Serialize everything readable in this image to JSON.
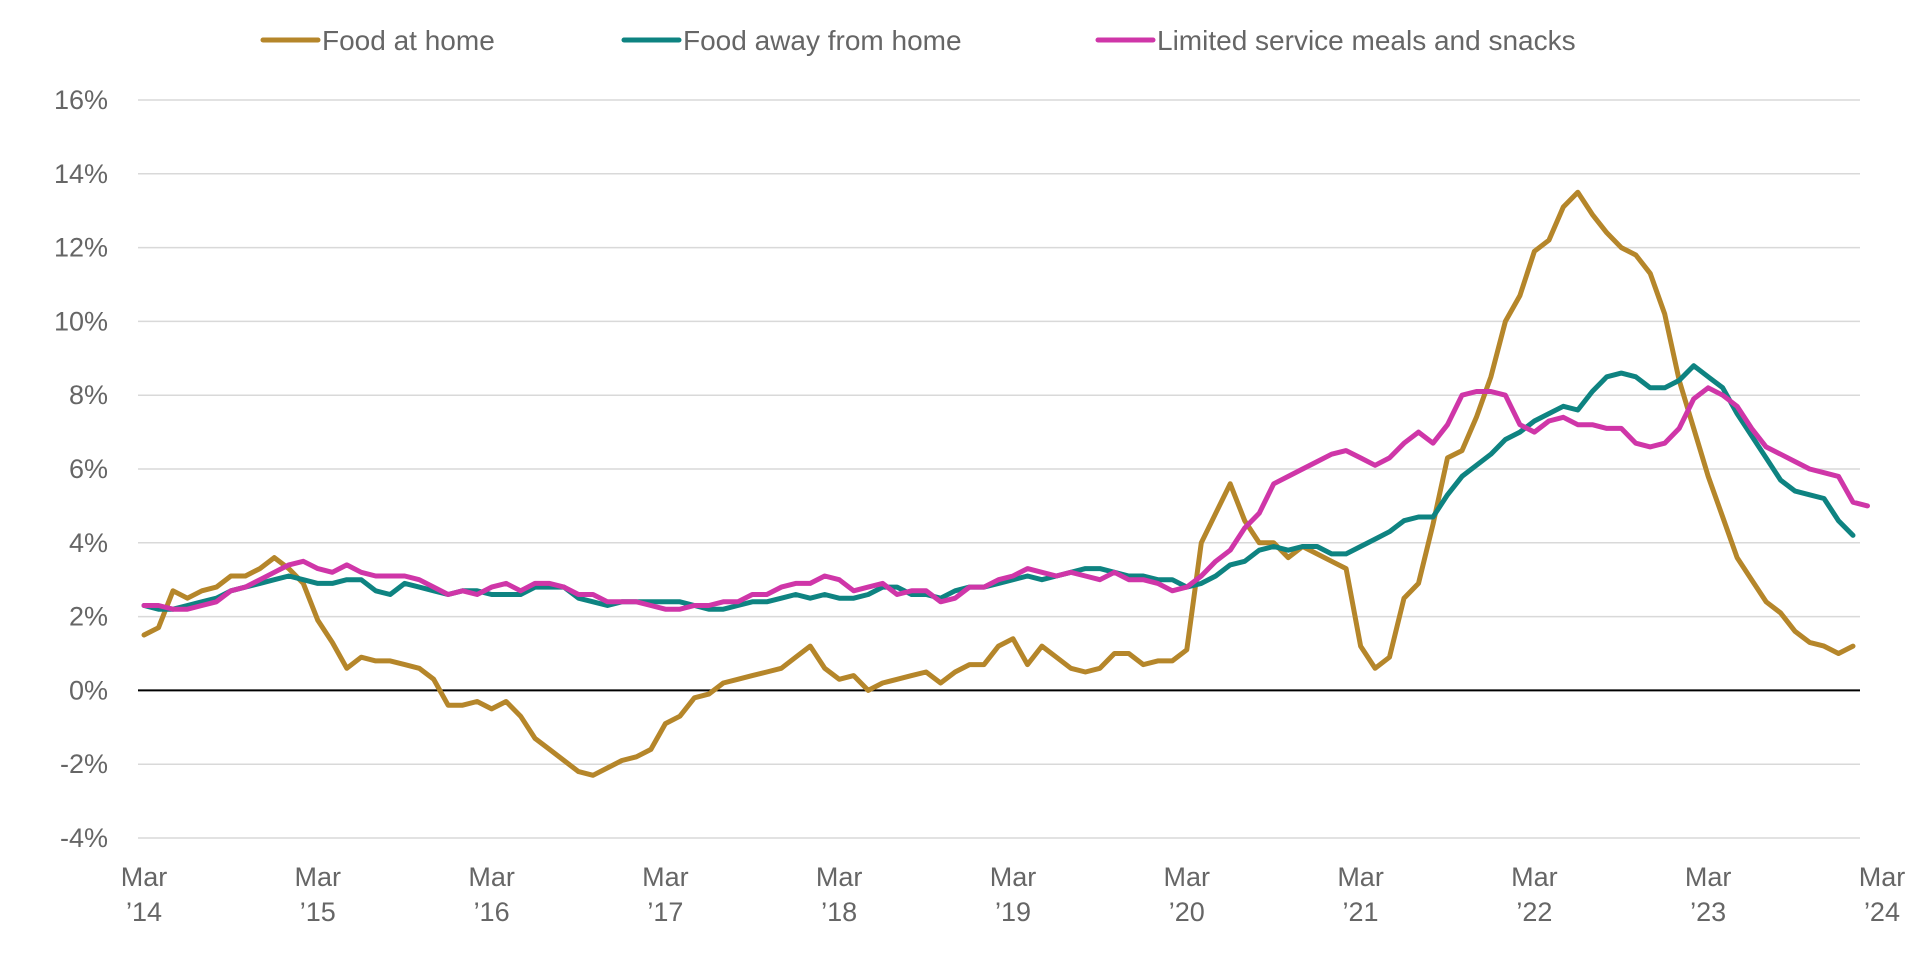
{
  "chart_data": {
    "type": "line",
    "title": "",
    "xlabel": "",
    "ylabel": "",
    "ylim": [
      -4,
      16
    ],
    "yticks": [
      16,
      14,
      12,
      10,
      8,
      6,
      4,
      2,
      0,
      -2,
      -4
    ],
    "ytick_labels": [
      "16%",
      "14%",
      "12%",
      "10%",
      "8%",
      "6%",
      "4%",
      "2%",
      "0%",
      "-2%",
      "-4%"
    ],
    "x_start": "2014-03",
    "x_end": "2024-03",
    "xtick_labels": [
      {
        "month": "Mar",
        "year": "’14"
      },
      {
        "month": "Mar",
        "year": "’15"
      },
      {
        "month": "Mar",
        "year": "’16"
      },
      {
        "month": "Mar",
        "year": "’17"
      },
      {
        "month": "Mar",
        "year": "’18"
      },
      {
        "month": "Mar",
        "year": "’19"
      },
      {
        "month": "Mar",
        "year": "’20"
      },
      {
        "month": "Mar",
        "year": "’21"
      },
      {
        "month": "Mar",
        "year": "’22"
      },
      {
        "month": "Mar",
        "year": "’23"
      },
      {
        "month": "Mar",
        "year": "’24"
      }
    ],
    "grid": true,
    "legend_position": "top",
    "series": [
      {
        "name": "Food at home",
        "color": "#B5862A",
        "values": [
          1.5,
          1.7,
          2.7,
          2.5,
          2.7,
          2.8,
          3.1,
          3.1,
          3.3,
          3.6,
          3.3,
          2.9,
          1.9,
          1.3,
          0.6,
          0.9,
          0.8,
          0.8,
          0.7,
          0.6,
          0.3,
          -0.4,
          -0.4,
          -0.3,
          -0.5,
          -0.3,
          -0.7,
          -1.3,
          -1.6,
          -1.9,
          -2.2,
          -2.3,
          -2.1,
          -1.9,
          -1.8,
          -1.6,
          -0.9,
          -0.7,
          -0.2,
          -0.1,
          0.2,
          0.3,
          0.4,
          0.5,
          0.6,
          0.9,
          1.2,
          0.6,
          0.3,
          0.4,
          0.0,
          0.2,
          0.3,
          0.4,
          0.5,
          0.2,
          0.5,
          0.7,
          0.7,
          1.2,
          1.4,
          0.7,
          1.2,
          0.9,
          0.6,
          0.5,
          0.6,
          1.0,
          1.0,
          0.7,
          0.8,
          0.8,
          1.1,
          4.0,
          4.8,
          5.6,
          4.6,
          4.0,
          4.0,
          3.6,
          3.9,
          3.7,
          3.5,
          3.3,
          1.2,
          0.6,
          0.9,
          2.5,
          2.9,
          4.5,
          6.3,
          6.5,
          7.4,
          8.5,
          10.0,
          10.7,
          11.9,
          12.2,
          13.1,
          13.5,
          12.9,
          12.4,
          12.0,
          11.8,
          11.3,
          10.2,
          8.4,
          7.1,
          5.8,
          4.7,
          3.6,
          3.0,
          2.4,
          2.1,
          1.6,
          1.3,
          1.2,
          1.0,
          1.2
        ]
      },
      {
        "name": "Food away from home",
        "color": "#0E8381",
        "values": [
          2.3,
          2.2,
          2.2,
          2.3,
          2.4,
          2.5,
          2.7,
          2.8,
          2.9,
          3.0,
          3.1,
          3.0,
          2.9,
          2.9,
          3.0,
          3.0,
          2.7,
          2.6,
          2.9,
          2.8,
          2.7,
          2.6,
          2.7,
          2.7,
          2.6,
          2.6,
          2.6,
          2.8,
          2.8,
          2.8,
          2.5,
          2.4,
          2.3,
          2.4,
          2.4,
          2.4,
          2.4,
          2.4,
          2.3,
          2.2,
          2.2,
          2.3,
          2.4,
          2.4,
          2.5,
          2.6,
          2.5,
          2.6,
          2.5,
          2.5,
          2.6,
          2.8,
          2.8,
          2.6,
          2.6,
          2.5,
          2.7,
          2.8,
          2.8,
          2.9,
          3.0,
          3.1,
          3.0,
          3.1,
          3.2,
          3.3,
          3.3,
          3.2,
          3.1,
          3.1,
          3.0,
          3.0,
          2.8,
          2.9,
          3.1,
          3.4,
          3.5,
          3.8,
          3.9,
          3.8,
          3.9,
          3.9,
          3.7,
          3.7,
          3.9,
          4.1,
          4.3,
          4.6,
          4.7,
          4.7,
          5.3,
          5.8,
          6.1,
          6.4,
          6.8,
          7.0,
          7.3,
          7.5,
          7.7,
          7.6,
          8.1,
          8.5,
          8.6,
          8.5,
          8.2,
          8.2,
          8.4,
          8.8,
          8.5,
          8.2,
          7.5,
          6.9,
          6.3,
          5.7,
          5.4,
          5.3,
          5.2,
          4.6,
          4.2
        ]
      },
      {
        "name": "Limited service meals and snacks",
        "color": "#CF36A8",
        "values": [
          2.3,
          2.3,
          2.2,
          2.2,
          2.3,
          2.4,
          2.7,
          2.8,
          3.0,
          3.2,
          3.4,
          3.5,
          3.3,
          3.2,
          3.4,
          3.2,
          3.1,
          3.1,
          3.1,
          3.0,
          2.8,
          2.6,
          2.7,
          2.6,
          2.8,
          2.9,
          2.7,
          2.9,
          2.9,
          2.8,
          2.6,
          2.6,
          2.4,
          2.4,
          2.4,
          2.3,
          2.2,
          2.2,
          2.3,
          2.3,
          2.4,
          2.4,
          2.6,
          2.6,
          2.8,
          2.9,
          2.9,
          3.1,
          3.0,
          2.7,
          2.8,
          2.9,
          2.6,
          2.7,
          2.7,
          2.4,
          2.5,
          2.8,
          2.8,
          3.0,
          3.1,
          3.3,
          3.2,
          3.1,
          3.2,
          3.1,
          3.0,
          3.2,
          3.0,
          3.0,
          2.9,
          2.7,
          2.8,
          3.1,
          3.5,
          3.8,
          4.4,
          4.8,
          5.6,
          5.8,
          6.0,
          6.2,
          6.4,
          6.5,
          6.3,
          6.1,
          6.3,
          6.7,
          7.0,
          6.7,
          7.2,
          8.0,
          8.1,
          8.1,
          8.0,
          7.2,
          7.0,
          7.3,
          7.4,
          7.2,
          7.2,
          7.1,
          7.1,
          6.7,
          6.6,
          6.7,
          7.1,
          7.9,
          8.2,
          8.0,
          7.7,
          7.1,
          6.6,
          6.4,
          6.2,
          6.0,
          5.9,
          5.8,
          5.1,
          5.0
        ]
      }
    ]
  }
}
